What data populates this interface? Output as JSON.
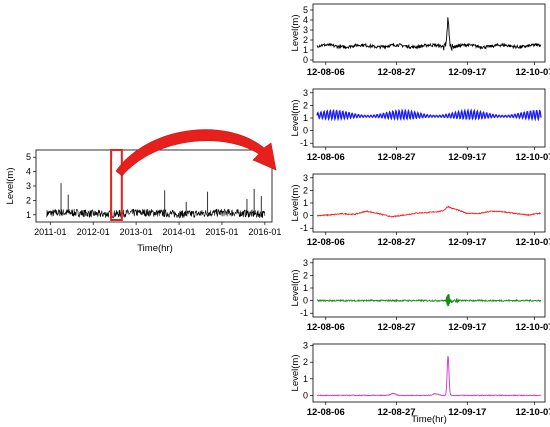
{
  "colors": {
    "main": "#000000",
    "s1": "#000000",
    "s2": "#1a1aff",
    "s3": "#ff1a1a",
    "s4": "#1a8a1a",
    "s5": "#cc33cc",
    "highlight": "#e8201c"
  },
  "chart_data": [
    {
      "id": "overview",
      "type": "line",
      "ylabel": "Level(m)",
      "xlabel": "Time(hr)",
      "x_ticks": [
        "2011-01",
        "2012-01",
        "2013-01",
        "2014-01",
        "2015-01",
        "2016-01"
      ],
      "y_ticks": [
        "1",
        "2",
        "3",
        "4",
        "5"
      ],
      "ylim": [
        0.5,
        5.5
      ],
      "xlim": [
        "2010-09",
        "2016-03"
      ],
      "baseline_range": [
        0.8,
        1.4
      ],
      "spikes": [
        {
          "x": "2011-04",
          "y": 3.2
        },
        {
          "x": "2011-06",
          "y": 2.4
        },
        {
          "x": "2012-06",
          "y": 4.9
        },
        {
          "x": "2012-09",
          "y": 4.2
        },
        {
          "x": "2013-09",
          "y": 2.7
        },
        {
          "x": "2014-03",
          "y": 1.9
        },
        {
          "x": "2014-09",
          "y": 2.6
        },
        {
          "x": "2015-08",
          "y": 2.1
        },
        {
          "x": "2015-10",
          "y": 2.8
        },
        {
          "x": "2015-12",
          "y": 2.3
        }
      ],
      "highlight_window": [
        "2012-06",
        "2012-09"
      ]
    },
    {
      "id": "observed",
      "type": "line",
      "ylabel": "Level(m)",
      "x_ticks": [
        "12-08-06",
        "12-08-27",
        "12-09-17",
        "12-10-07"
      ],
      "y_ticks": [
        "0",
        "1",
        "2",
        "3",
        "4",
        "5"
      ],
      "ylim": [
        -0.2,
        5.6
      ],
      "baseline": 1.4,
      "peak": {
        "x": "12-09-12",
        "y": 4.2
      }
    },
    {
      "id": "tidal",
      "type": "line",
      "ylabel": "Level(m)",
      "x_ticks": [
        "12-08-06",
        "12-08-27",
        "12-09-17",
        "12-10-07"
      ],
      "y_ticks": [
        "-1",
        "0",
        "1",
        "2",
        "3"
      ],
      "ylim": [
        -1.3,
        3.3
      ],
      "mean": 1.2,
      "envelope_amplitude": 0.35
    },
    {
      "id": "low_frequency",
      "type": "line",
      "ylabel": "Level(m)",
      "x_ticks": [
        "12-08-06",
        "12-08-27",
        "12-09-17",
        "12-10-07"
      ],
      "y_ticks": [
        "-1",
        "0",
        "1",
        "2",
        "3"
      ],
      "ylim": [
        -1.3,
        3.3
      ],
      "values_approx": [
        0.0,
        0.05,
        0.15,
        0.1,
        0.35,
        0.15,
        -0.1,
        0.05,
        0.2,
        0.25,
        0.35,
        0.55,
        0.2,
        0.15,
        0.35,
        0.3,
        0.15,
        0.05,
        0.2
      ]
    },
    {
      "id": "high_frequency",
      "type": "line",
      "ylabel": "Level(m)",
      "x_ticks": [
        "12-08-06",
        "12-08-27",
        "12-09-17",
        "12-10-07"
      ],
      "y_ticks": [
        "-1",
        "0",
        "1",
        "2",
        "3"
      ],
      "ylim": [
        -1.3,
        3.3
      ],
      "burst": {
        "x": "12-09-12",
        "max": 0.9,
        "min": -0.7
      }
    },
    {
      "id": "residual",
      "type": "line",
      "ylabel": "Level(m)",
      "xlabel": "Time(hr)",
      "x_ticks": [
        "12-08-06",
        "12-08-27",
        "12-09-17",
        "12-10-07"
      ],
      "y_ticks": [
        "0",
        "1",
        "2",
        "3"
      ],
      "ylim": [
        -0.4,
        3.1
      ],
      "peak": {
        "x": "12-09-12",
        "y": 2.4
      }
    }
  ]
}
